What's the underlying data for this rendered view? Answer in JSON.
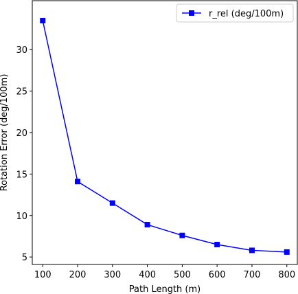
{
  "chart_data": {
    "type": "line",
    "xlabel": "Path Length (m)",
    "ylabel": "Rotation Error (deg/100m)",
    "x": [
      100,
      200,
      300,
      400,
      500,
      600,
      700,
      800
    ],
    "series": [
      {
        "name": "r_rel (deg/100m)",
        "color": "#0000ff",
        "marker": "square",
        "values": [
          33.5,
          14.1,
          11.5,
          8.9,
          7.6,
          6.5,
          5.8,
          5.6
        ]
      }
    ],
    "xlim": [
      70,
      830
    ],
    "ylim": [
      4.1,
      35.9
    ],
    "xticks": [
      "100",
      "200",
      "300",
      "400",
      "500",
      "600",
      "700",
      "800"
    ],
    "yticks": [
      "5",
      "10",
      "15",
      "20",
      "25",
      "30"
    ],
    "legend_position": "top-right",
    "grid": false
  }
}
